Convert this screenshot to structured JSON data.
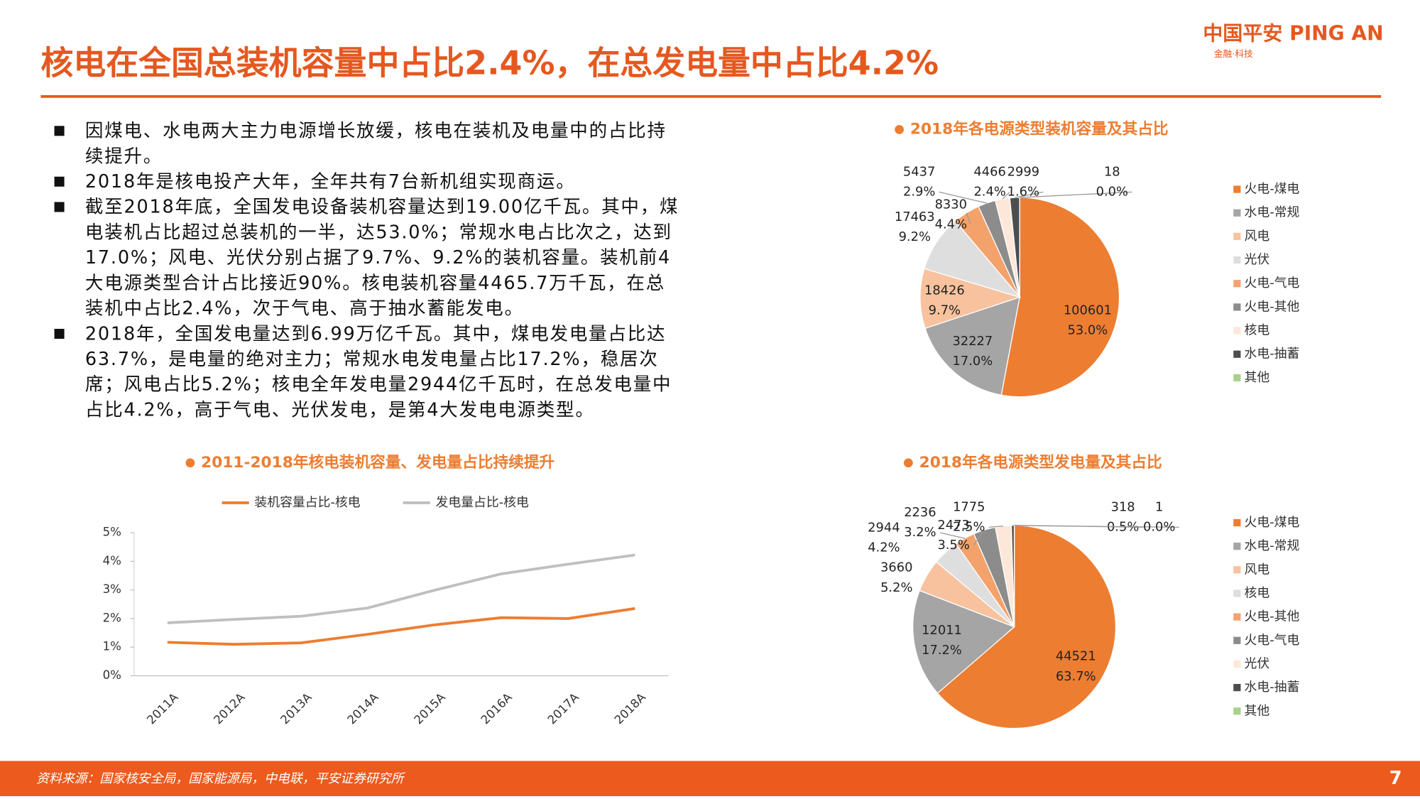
{
  "header": {
    "title": "核电在全国总装机容量中占比2.4%，在总发电量中占比4.2%",
    "logo": "中国平安 PING AN",
    "logo_sub": "金融·科技"
  },
  "bullets": [
    "因煤电、水电两大主力电源增长放缓，核电在装机及电量中的占比持续提升。",
    "2018年是核电投产大年，全年共有7台新机组实现商运。",
    "截至2018年底，全国发电设备装机容量达到19.00亿千瓦。其中，煤电装机占比超过总装机的一半，达53.0%；常规水电占比次之，达到17.0%；风电、光伏分别占据了9.7%、9.2%的装机容量。装机前4大电源类型合计占比接近90%。核电装机容量4465.7万千瓦，在总装机中占比2.4%，次于气电、高于抽水蓄能发电。",
    "2018年，全国发电量达到6.99万亿千瓦。其中，煤电发电量占比达63.7%，是电量的绝对主力；常规水电发电量占比17.2%，稳居次席；风电占比5.2%；核电全年发电量2944亿千瓦时，在总发电量中占比4.2%，高于气电、光伏发电，是第4大发电电源类型。"
  ],
  "chart_data": [
    {
      "type": "line",
      "title": "2011-2018年核电装机容量、发电量占比持续提升",
      "categories": [
        "2011A",
        "2012A",
        "2013A",
        "2014A",
        "2015A",
        "2016A",
        "2017A",
        "2018A"
      ],
      "series": [
        {
          "name": "装机容量占比-核电",
          "color": "#ed7d31",
          "values": [
            1.17,
            1.1,
            1.15,
            1.45,
            1.78,
            2.03,
            2.0,
            2.35
          ]
        },
        {
          "name": "发电量占比-核电",
          "color": "#bfbfbf",
          "values": [
            1.85,
            1.97,
            2.08,
            2.37,
            2.99,
            3.56,
            3.9,
            4.22
          ]
        }
      ],
      "ylim": [
        0,
        5
      ],
      "yticks": [
        {
          "value": 0,
          "label": "0%"
        },
        {
          "value": 1,
          "label": "1%"
        },
        {
          "value": 2,
          "label": "2%"
        },
        {
          "value": 3,
          "label": "3%"
        },
        {
          "value": 4,
          "label": "4%"
        },
        {
          "value": 5,
          "label": "5%"
        }
      ]
    },
    {
      "type": "pie",
      "title": "2018年各电源类型装机容量及其占比",
      "categories": [
        "火电-煤电",
        "水电-常规",
        "风电",
        "光伏",
        "火电-气电",
        "火电-其他",
        "核电",
        "水电-抽蓄",
        "其他"
      ],
      "values": [
        100601,
        32227,
        18426,
        17463,
        8330,
        5437,
        4466,
        2999,
        18
      ],
      "percent_labels": [
        "53.0%",
        "17.0%",
        "9.7%",
        "9.2%",
        "4.4%",
        "2.9%",
        "2.4%",
        "1.6%",
        "0.0%"
      ],
      "colors": [
        "#ed7d31",
        "#a5a5a5",
        "#f8c29e",
        "#dedede",
        "#f4a26b",
        "#8c8c8c",
        "#fde7d8",
        "#4d4d4d",
        "#a9d18e"
      ]
    },
    {
      "type": "pie",
      "title": "2018年各电源类型发电量及其占比",
      "categories": [
        "火电-煤电",
        "水电-常规",
        "风电",
        "核电",
        "火电-其他",
        "火电-气电",
        "光伏",
        "水电-抽蓄",
        "其他"
      ],
      "values": [
        44521,
        12011,
        3660,
        2944,
        2236,
        2473,
        1775,
        318,
        1
      ],
      "percent_labels": [
        "63.7%",
        "17.2%",
        "5.2%",
        "4.2%",
        "3.2%",
        "3.5%",
        "2.5%",
        "0.5%",
        "0.0%"
      ],
      "colors": [
        "#ed7d31",
        "#a5a5a5",
        "#f8c29e",
        "#dedede",
        "#f4a26b",
        "#8c8c8c",
        "#fde7d8",
        "#4d4d4d",
        "#a9d18e"
      ]
    }
  ],
  "footer": {
    "source": "资料来源：国家核安全局，国家能源局，中电联，平安证券研究所",
    "page": "7"
  }
}
